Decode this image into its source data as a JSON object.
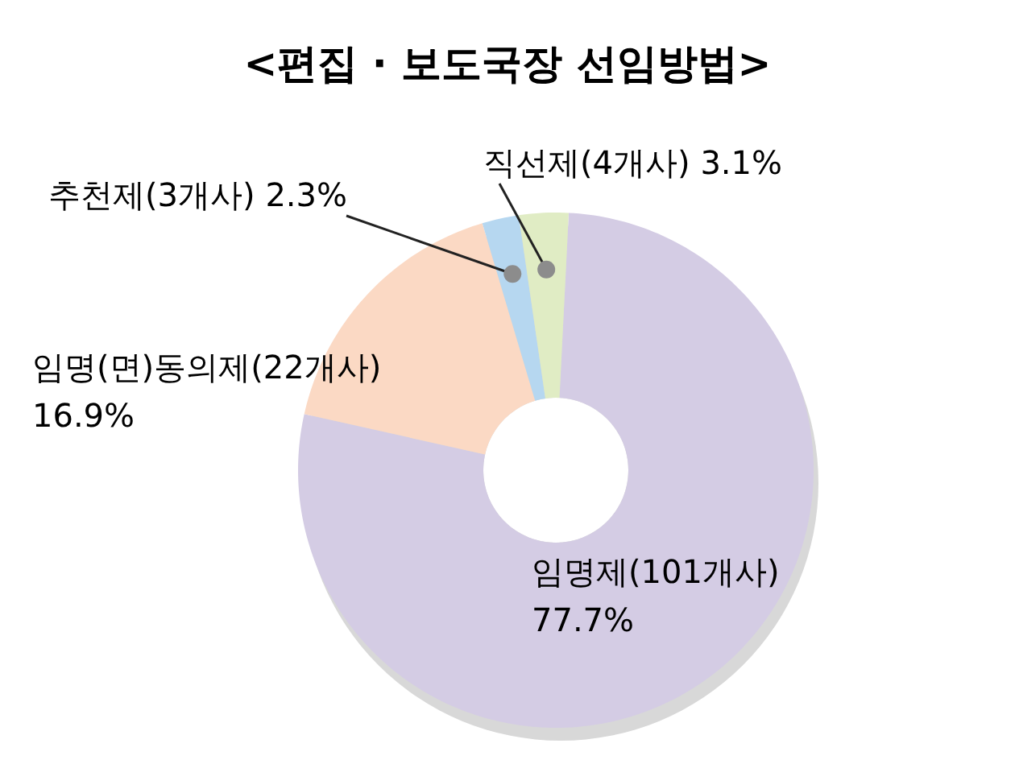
{
  "chart_data": {
    "type": "donut",
    "title": "<편집 · 보도국장 선임방법>",
    "categories": [
      "임명제(101개사)",
      "임명(면)동의제(22개사)",
      "추천제(3개사)",
      "직선제(4개사)"
    ],
    "values": [
      77.7,
      16.9,
      2.3,
      3.1
    ],
    "value_labels": [
      "77.7%",
      "16.9%",
      "2.3%",
      "3.1%"
    ],
    "colors": [
      "#d4cce4",
      "#fbd9c4",
      "#b6d7f0",
      "#e0ecc4"
    ]
  }
}
